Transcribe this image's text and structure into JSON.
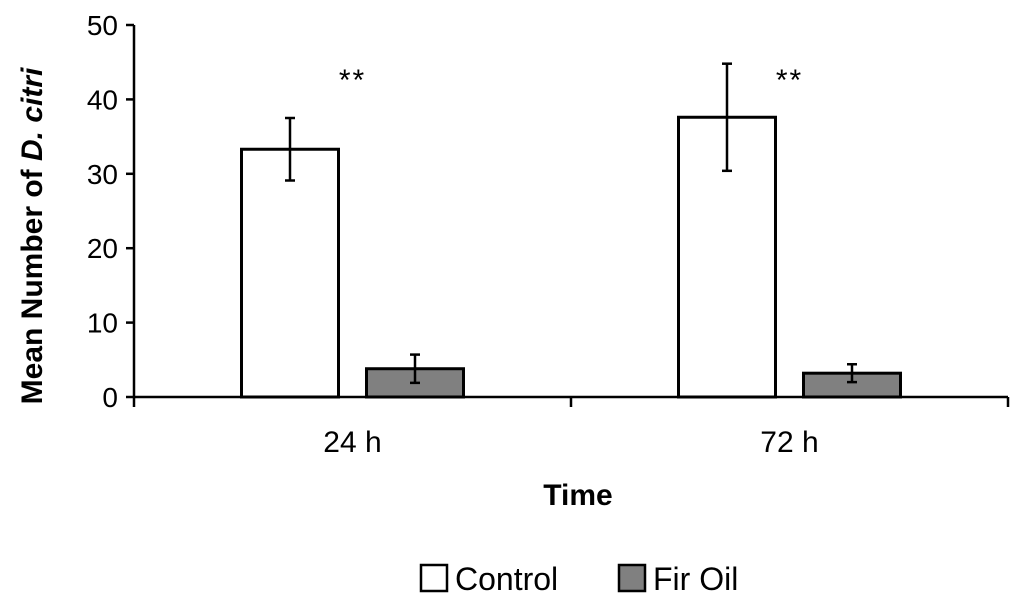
{
  "chart_data": {
    "type": "bar",
    "categories": [
      "24 h",
      "72 h"
    ],
    "series": [
      {
        "name": "Control",
        "values": [
          33.3,
          37.6
        ],
        "errors": [
          4.2,
          7.2
        ],
        "color": "#ffffff"
      },
      {
        "name": "Fir Oil",
        "values": [
          3.8,
          3.2
        ],
        "errors": [
          1.9,
          1.2
        ],
        "color": "#808080"
      }
    ],
    "significance": [
      "**",
      "**"
    ],
    "xlabel": "Time",
    "ylabel": {
      "prefix": "Mean Number of ",
      "italic": "D. citri"
    },
    "ylim": [
      0,
      50
    ],
    "yticks": [
      0,
      10,
      20,
      30,
      40,
      50
    ],
    "grid": false,
    "legend_position": "bottom"
  }
}
